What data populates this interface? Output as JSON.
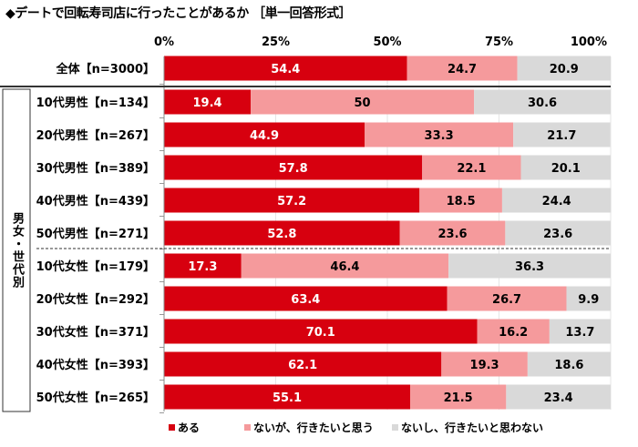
{
  "title": "◆デートで回転寿司店に行ったことがあるか ［単一回答形式］",
  "chart_data": {
    "type": "bar",
    "stacked": true,
    "orientation": "horizontal",
    "title": "◆デートで回転寿司店に行ったことがあるか ［単一回答形式］",
    "xlim": [
      0,
      100
    ],
    "x_ticks": [
      "0%",
      "25%",
      "50%",
      "75%",
      "100%"
    ],
    "grid": true,
    "legend_position": "bottom",
    "group_label": "男女・世代別",
    "categories": [
      "全体【n=3000】",
      "10代男性【n=134】",
      "20代男性【n=267】",
      "30代男性【n=389】",
      "40代男性【n=439】",
      "50代男性【n=271】",
      "10代女性【n=179】",
      "20代女性【n=292】",
      "30代女性【n=371】",
      "40代女性【n=393】",
      "50代女性【n=265】"
    ],
    "series": [
      {
        "name": "ある",
        "color": "#d7000f",
        "values": [
          54.4,
          19.4,
          44.9,
          57.8,
          57.2,
          52.8,
          17.3,
          63.4,
          70.1,
          62.1,
          55.1
        ]
      },
      {
        "name": "ないが、行きたいと思う",
        "color": "#f59a9c",
        "values": [
          24.7,
          50.0,
          33.3,
          22.1,
          18.5,
          23.6,
          46.4,
          26.7,
          16.2,
          19.3,
          21.5
        ]
      },
      {
        "name": "ないし、行きたいと思わない",
        "color": "#d9d9d9",
        "values": [
          20.9,
          30.6,
          21.7,
          20.1,
          24.4,
          23.6,
          36.3,
          9.9,
          13.7,
          18.6,
          23.4
        ]
      }
    ]
  }
}
